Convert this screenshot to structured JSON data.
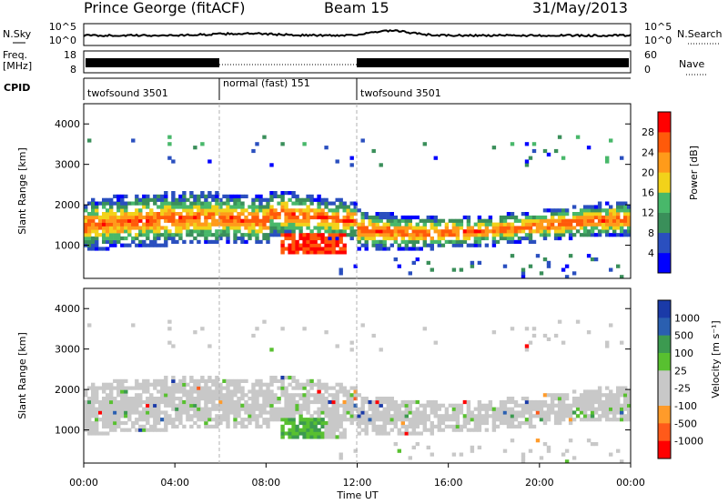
{
  "header": {
    "station": "Prince George (fitACF)",
    "beam": "Beam 15",
    "date": "31/May/2013"
  },
  "noise_panel": {
    "left_label": "N.Sky",
    "right_label": "N.Search",
    "left_ticks": [
      "10^5",
      "10^0"
    ],
    "right_ticks": [
      "10^5",
      "10^0"
    ]
  },
  "freq_panel": {
    "left_label_top": "Freq.",
    "left_label_bottom": "[MHz]",
    "right_label": "Nave",
    "left_ticks": [
      "18",
      "8"
    ],
    "right_ticks": [
      "60",
      "0"
    ]
  },
  "cpid": {
    "label": "CPID",
    "segments": [
      {
        "name": "twofsound 3501",
        "start_hour": 0,
        "end_hour": 6
      },
      {
        "name": "normal (fast) 151",
        "start_hour": 6,
        "end_hour": 12
      },
      {
        "name": "twofsound 3501",
        "start_hour": 12,
        "end_hour": 24
      }
    ]
  },
  "colors": {
    "power_scale": [
      "#0000ff",
      "#2a4fbf",
      "#3a8f5a",
      "#48b86a",
      "#f2d21a",
      "#ff9b1a",
      "#ff5a0a",
      "#ff0000"
    ],
    "velocity_scale": [
      "#ff0000",
      "#ff5a1a",
      "#ff9b2a",
      "#c8c8c8",
      "#c8c8c8",
      "#58c030",
      "#3c9a50",
      "#2a5fb0",
      "#1a3aa8"
    ],
    "ground_scatter": "#c8c8c8"
  },
  "chart_data": [
    {
      "type": "heatmap",
      "name": "power",
      "xlabel": "",
      "ylabel": "Slant Range [km]",
      "xlim": [
        0,
        24
      ],
      "ylim": [
        180,
        4500
      ],
      "x_ticks": [],
      "y_ticks": [
        "1000",
        "2000",
        "3000",
        "4000"
      ],
      "y_tick_values": [
        1000,
        2000,
        3000,
        4000
      ],
      "colorbar": {
        "label": "Power [dB]",
        "ticks": [
          "4",
          "8",
          "12",
          "16",
          "20",
          "24",
          "28"
        ],
        "range": [
          0,
          32
        ]
      },
      "features": [
        {
          "feature": "main scatter band",
          "start_hour": 0,
          "end_hour": 24,
          "range_km": [
            700,
            2100
          ]
        },
        {
          "feature": "strong echoes",
          "start_hour": 8.5,
          "end_hour": 11.5,
          "range_km": [
            700,
            1300
          ],
          "power_db": 30
        }
      ]
    },
    {
      "type": "heatmap",
      "name": "velocity",
      "xlabel": "Time UT",
      "ylabel": "Slant Range [km]",
      "xlim": [
        0,
        24
      ],
      "ylim": [
        180,
        4500
      ],
      "x_ticks": [
        "00:00",
        "04:00",
        "08:00",
        "12:00",
        "16:00",
        "20:00",
        "00:00"
      ],
      "x_tick_values": [
        0,
        4,
        8,
        12,
        16,
        20,
        24
      ],
      "y_ticks": [
        "1000",
        "2000",
        "3000",
        "4000"
      ],
      "y_tick_values": [
        1000,
        2000,
        3000,
        4000
      ],
      "colorbar": {
        "label": "Velocity [m s⁻¹]",
        "ticks": [
          "1000",
          "500",
          "100",
          "25",
          "-25",
          "-100",
          "-500",
          "-1000"
        ]
      },
      "features": [
        {
          "feature": "ground scatter band",
          "start_hour": 0,
          "end_hour": 24,
          "range_km": [
            800,
            2100
          ]
        },
        {
          "feature": "positive velocity echoes",
          "start_hour": 8.5,
          "end_hour": 10.5,
          "range_km": [
            700,
            1300
          ]
        }
      ]
    }
  ]
}
